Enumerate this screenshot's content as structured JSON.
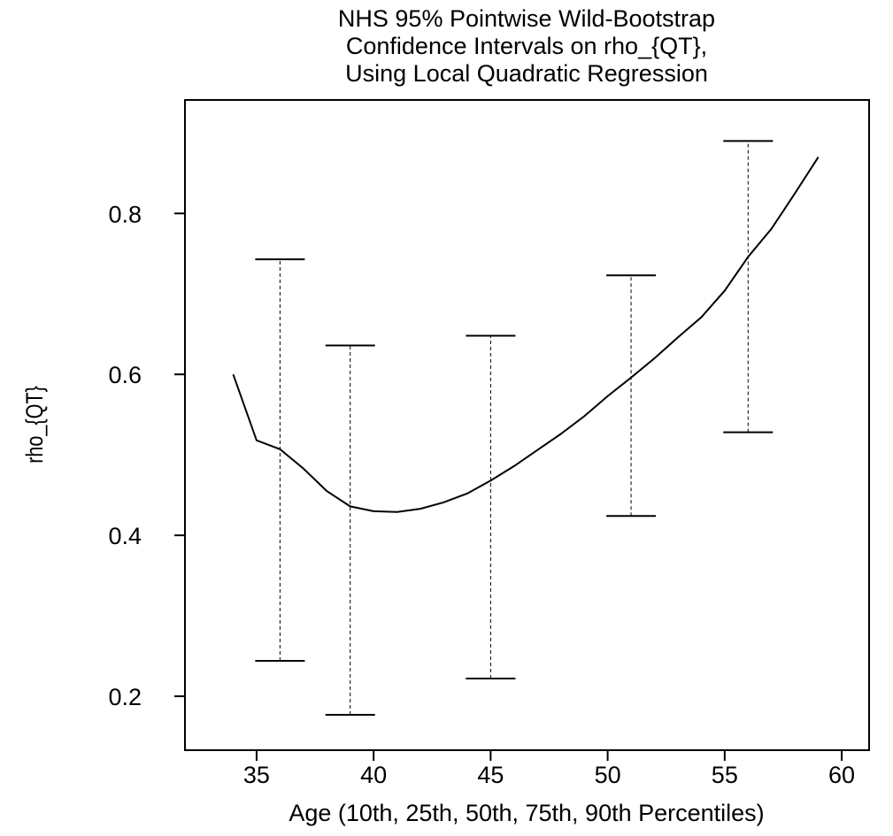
{
  "chart_data": {
    "type": "line",
    "title": [
      "NHS 95% Pointwise Wild-Bootstrap",
      "Confidence Intervals on rho_{QT},",
      "Using Local Quadratic Regression"
    ],
    "x_label": "Age (10th, 25th, 50th, 75th, 90th Percentiles)",
    "y_label": "rho_{QT}",
    "x": [
      34,
      35,
      36,
      37,
      38,
      39,
      40,
      41,
      42,
      43,
      44,
      45,
      46,
      47,
      48,
      49,
      50,
      51,
      52,
      53,
      54,
      55,
      56,
      57,
      58,
      59
    ],
    "values": [
      0.6,
      0.518,
      0.507,
      0.483,
      0.455,
      0.436,
      0.43,
      0.429,
      0.433,
      0.441,
      0.452,
      0.468,
      0.486,
      0.506,
      0.526,
      0.548,
      0.573,
      0.596,
      0.62,
      0.646,
      0.671,
      0.704,
      0.746,
      0.781,
      0.825,
      0.87
    ],
    "color": "#000000",
    "intervals": {
      "x": [
        36,
        39,
        45,
        51,
        56
      ],
      "lower": [
        0.244,
        0.177,
        0.222,
        0.424,
        0.528
      ],
      "upper": [
        0.743,
        0.636,
        0.648,
        0.723,
        0.89
      ]
    },
    "xlim": [
      31.94,
      61.17
    ],
    "ylim": [
      0.133,
      0.941
    ],
    "xticks": [
      35,
      40,
      45,
      50,
      55,
      60
    ],
    "yticks": [
      0.2,
      0.4,
      0.6,
      0.8
    ],
    "grid": false
  }
}
